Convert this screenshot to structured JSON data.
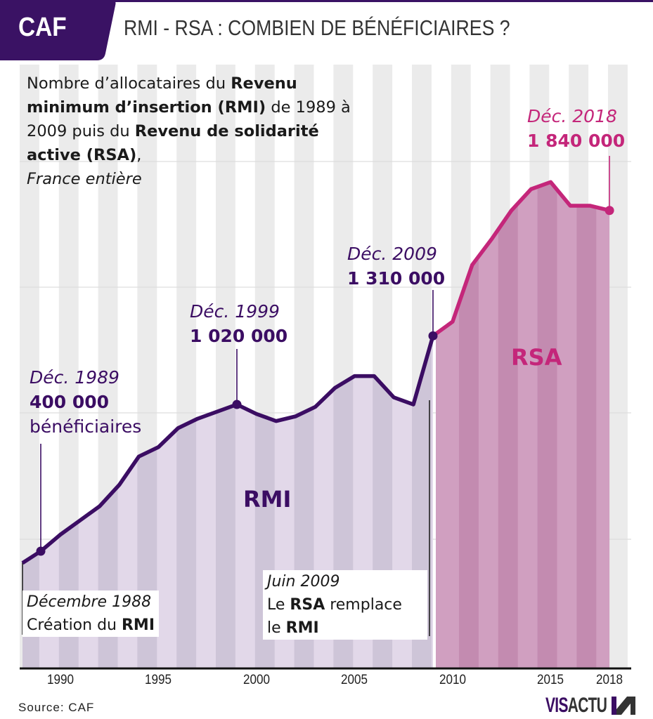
{
  "header": {
    "tag": "CAF",
    "title": "RMI - RSA : COMBIEN DE BÉNÉFICIAIRES ?"
  },
  "subtitle": {
    "p1": "Nombre d’allocataires du ",
    "b1": "Revenu minimum d’insertion (RMI)",
    "p2": " de 1989 à 2009 puis du ",
    "b2": "Revenu de solidarité active (RSA)",
    "p3": ",",
    "it": "France entière"
  },
  "annotations": {
    "a1989": {
      "date": "Déc. 1989",
      "value": "400 000",
      "extra": "bénéficiaires"
    },
    "a1999": {
      "date": "Déc. 1999",
      "value": "1 020 000"
    },
    "a2009": {
      "date": "Déc. 2009",
      "value": "1 310 000"
    },
    "a2018": {
      "date": "Déc. 2018",
      "value": "1 840 000"
    }
  },
  "boxes": {
    "creation": {
      "date": "Décembre 1988",
      "text_pre": "Création du ",
      "text_bold": "RMI"
    },
    "switch": {
      "date": "Juin 2009",
      "l1_pre": "Le ",
      "l1_bold": "RSA",
      "l1_post": " remplace",
      "l2_pre": "le ",
      "l2_bold": "RMI"
    }
  },
  "area_labels": {
    "rmi": "RMI",
    "rsa": "RSA"
  },
  "colors": {
    "rmi_line": "#3b0d63",
    "rsa_line": "#c4267a",
    "header_bg": "#3a1264"
  },
  "footer": {
    "source": "Source:  CAF",
    "logo_a": "VIS",
    "logo_b": "ACTU"
  },
  "chart_data": {
    "type": "area",
    "title": "RMI - RSA : COMBIEN DE BÉNÉFICIAIRES ?",
    "xlabel": "",
    "ylabel": "",
    "x_ticks": [
      "1990",
      "1995",
      "2000",
      "2005",
      "2010",
      "2015",
      "2018"
    ],
    "xlim": [
      1988,
      2019
    ],
    "ylim": [
      0,
      2000000
    ],
    "grid": true,
    "series": [
      {
        "name": "RMI",
        "x": [
          1988,
          1989,
          1990,
          1991,
          1992,
          1993,
          1994,
          1995,
          1996,
          1997,
          1998,
          1999,
          2000,
          2001,
          2002,
          2003,
          2004,
          2005,
          2006,
          2007,
          2008,
          2009
        ],
        "values": [
          350000,
          400000,
          470000,
          530000,
          590000,
          680000,
          800000,
          840000,
          920000,
          960000,
          990000,
          1020000,
          980000,
          950000,
          970000,
          1010000,
          1090000,
          1140000,
          1140000,
          1050000,
          1020000,
          1310000
        ]
      },
      {
        "name": "RSA",
        "x": [
          2009,
          2010,
          2011,
          2012,
          2013,
          2014,
          2015,
          2016,
          2017,
          2018
        ],
        "values": [
          1310000,
          1370000,
          1610000,
          1720000,
          1840000,
          1930000,
          1960000,
          1860000,
          1860000,
          1840000
        ]
      }
    ],
    "annotations": [
      {
        "x": 1989,
        "label": "Déc. 1989 — 400 000 bénéficiaires"
      },
      {
        "x": 1999,
        "label": "Déc. 1999 — 1 020 000"
      },
      {
        "x": 2009,
        "label": "Déc. 2009 — 1 310 000"
      },
      {
        "x": 2018,
        "label": "Déc. 2018 — 1 840 000"
      },
      {
        "x": 1988,
        "label": "Décembre 1988 Création du RMI"
      },
      {
        "x": 2009.5,
        "label": "Juin 2009 Le RSA remplace le RMI"
      }
    ]
  }
}
